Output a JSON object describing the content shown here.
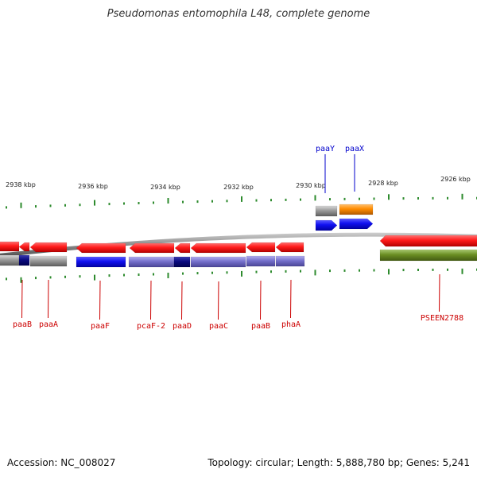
{
  "title": "Pseudomonas entomophila L48, complete genome",
  "footer": {
    "accession": "Accession: NC_008027",
    "summary": "Topology: circular; Length: 5,888,780 bp; Genes: 5,241"
  },
  "colors": {
    "backbone": "#8a8a8a",
    "tick": "#2e8b2e",
    "gene_red": "#ff1a1a",
    "gene_blue": "#1010f0",
    "gene_orange": "#ff8c00",
    "gene_gray": "#9a9a9a",
    "gene_violet": "#7570cc",
    "gene_navy": "#0a0a80",
    "gene_olive": "#6b8e23",
    "label_red": "#cc0000",
    "label_blue": "#0000cc"
  },
  "kbp_labels": [
    "2938 kbp",
    "2936 kbp",
    "2934 kbp",
    "2932 kbp",
    "2930 kbp",
    "2928 kbp",
    "2926 kbp"
  ],
  "gene_labels_below": [
    "paaB",
    "paaA",
    "paaF",
    "pcaF-2",
    "paaD",
    "paaC",
    "paaB",
    "phaA",
    "PSEEN2788"
  ],
  "gene_labels_above": [
    "paaY",
    "paaX"
  ]
}
